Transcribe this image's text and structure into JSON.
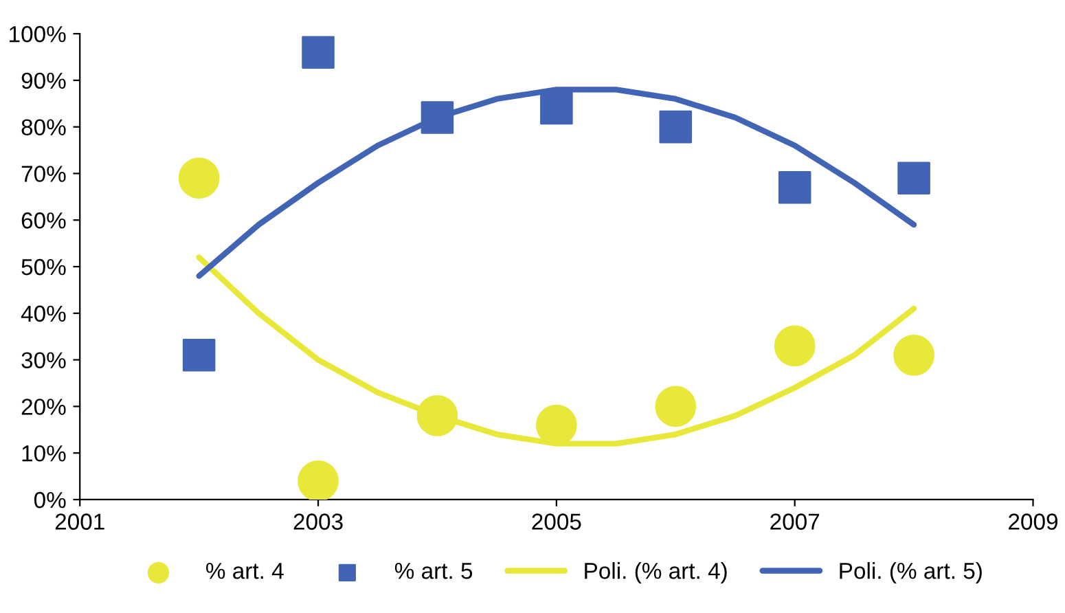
{
  "chart_data": {
    "type": "scatter",
    "legend": "bottom",
    "grid": false,
    "xlim": [
      2001,
      2009
    ],
    "xticks": [
      2001,
      2003,
      2005,
      2007,
      2009
    ],
    "ylim": [
      0,
      100
    ],
    "yticks": [
      {
        "value": 0,
        "label": "0%"
      },
      {
        "value": 10,
        "label": "10%"
      },
      {
        "value": 20,
        "label": "20%"
      },
      {
        "value": 30,
        "label": "30%"
      },
      {
        "value": 40,
        "label": "40%"
      },
      {
        "value": 50,
        "label": "50%"
      },
      {
        "value": 60,
        "label": "60%"
      },
      {
        "value": 70,
        "label": "70%"
      },
      {
        "value": 80,
        "label": "80%"
      },
      {
        "value": 90,
        "label": "90%"
      },
      {
        "value": 100,
        "label": "100%"
      }
    ],
    "series": [
      {
        "name": "% art. 4",
        "marker": "circle",
        "color": "#e8e83a",
        "x": [
          2002,
          2003,
          2004,
          2005,
          2006,
          2007,
          2008
        ],
        "values": [
          69,
          4,
          18,
          16,
          20,
          33,
          31
        ]
      },
      {
        "name": "% art. 5",
        "marker": "square",
        "color": "#4164b4",
        "x": [
          2002,
          2003,
          2004,
          2005,
          2006,
          2007,
          2008
        ],
        "values": [
          31,
          96,
          82,
          84,
          80,
          67,
          69
        ]
      },
      {
        "name": "Poli. (% art. 4)",
        "type": "line",
        "marker": "none",
        "line_style": "solid",
        "color": "#e8e83a",
        "x": [
          2002,
          2002.5,
          2003,
          2003.5,
          2004,
          2004.5,
          2005,
          2005.5,
          2006,
          2006.5,
          2007,
          2007.5,
          2008
        ],
        "values": [
          52,
          40,
          30,
          23,
          18,
          14,
          12,
          12,
          14,
          18,
          24,
          31,
          41
        ]
      },
      {
        "name": "Poli. (% art. 5)",
        "type": "line",
        "marker": "none",
        "line_style": "solid",
        "color": "#4164b4",
        "x": [
          2002,
          2002.5,
          2003,
          2003.5,
          2004,
          2004.5,
          2005,
          2005.5,
          2006,
          2006.5,
          2007,
          2007.5,
          2008
        ],
        "values": [
          48,
          59,
          68,
          76,
          82,
          86,
          88,
          88,
          86,
          82,
          76,
          68,
          59
        ]
      }
    ]
  }
}
